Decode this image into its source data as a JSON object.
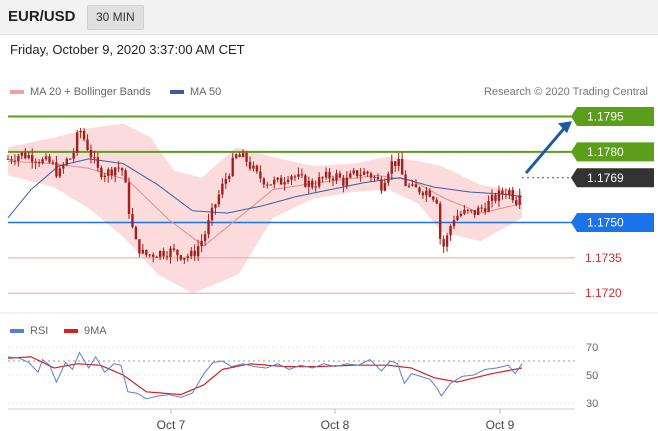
{
  "header": {
    "pair": "EUR/USD",
    "timeframe": "30 MIN"
  },
  "datetime": "Friday, October 9, 2020 3:37:00 AM CET",
  "legend": {
    "ma20": "MA 20 + Bollinger Bands",
    "ma50": "MA 50",
    "credit": "Research © 2020 Trading Central",
    "rsi": "RSI",
    "ma9": "9MA"
  },
  "colors": {
    "bollinger": "#f7b0b0",
    "ma20": "#e88a8a",
    "ma50": "#3a5f9e",
    "resistance": "#5a9e1a",
    "support": "#1a73e8",
    "target_line": "#f0a0a0",
    "candle": "#a02020",
    "arrow": "#1e5aa0",
    "rsi": "#5b7fd0",
    "rsi_ma": "#d42020"
  },
  "chart_data": [
    {
      "type": "candlestick",
      "ylim": [
        1.1715,
        1.1802
      ],
      "x_ticks": [
        "Oct 7",
        "Oct 8",
        "Oct 9"
      ],
      "levels": [
        {
          "value": 1.1795,
          "label": "1.1795",
          "kind": "resistance"
        },
        {
          "value": 1.178,
          "label": "1.1780",
          "kind": "resistance"
        },
        {
          "value": 1.1769,
          "label": "1.1769",
          "kind": "current"
        },
        {
          "value": 1.175,
          "label": "1.1750",
          "kind": "pivot"
        },
        {
          "value": 1.1735,
          "label": "1.1735",
          "kind": "target"
        },
        {
          "value": 1.172,
          "label": "1.1720",
          "kind": "target"
        }
      ],
      "close_anchors": [
        [
          0,
          1.1777
        ],
        [
          10,
          1.1779
        ],
        [
          22,
          1.1778
        ],
        [
          30,
          1.1776
        ],
        [
          38,
          1.1775
        ],
        [
          44,
          1.177
        ],
        [
          50,
          1.1776
        ],
        [
          56,
          1.1778
        ],
        [
          62,
          1.179
        ],
        [
          70,
          1.1781
        ],
        [
          78,
          1.1772
        ],
        [
          86,
          1.1771
        ],
        [
          94,
          1.1774
        ],
        [
          100,
          1.1772
        ],
        [
          104,
          1.1758
        ],
        [
          110,
          1.1742
        ],
        [
          118,
          1.1736
        ],
        [
          128,
          1.1737
        ],
        [
          140,
          1.1738
        ],
        [
          152,
          1.1736
        ],
        [
          160,
          1.1736
        ],
        [
          170,
          1.1744
        ],
        [
          180,
          1.1758
        ],
        [
          190,
          1.177
        ],
        [
          198,
          1.1778
        ],
        [
          206,
          1.1777
        ],
        [
          216,
          1.177
        ],
        [
          226,
          1.1767
        ],
        [
          236,
          1.1767
        ],
        [
          244,
          1.1771
        ],
        [
          254,
          1.1768
        ],
        [
          264,
          1.1766
        ],
        [
          274,
          1.1769
        ],
        [
          284,
          1.177
        ],
        [
          292,
          1.1767
        ],
        [
          302,
          1.1771
        ],
        [
          312,
          1.1771
        ],
        [
          318,
          1.1769
        ],
        [
          324,
          1.1766
        ],
        [
          332,
          1.1775
        ],
        [
          338,
          1.1776
        ],
        [
          344,
          1.1767
        ],
        [
          350,
          1.1764
        ],
        [
          358,
          1.1764
        ],
        [
          366,
          1.1763
        ],
        [
          372,
          1.176
        ],
        [
          376,
          1.1738
        ],
        [
          380,
          1.1742
        ],
        [
          386,
          1.1752
        ],
        [
          394,
          1.1754
        ],
        [
          404,
          1.1754
        ],
        [
          414,
          1.1757
        ],
        [
          424,
          1.1761
        ],
        [
          434,
          1.1764
        ],
        [
          442,
          1.1759
        ],
        [
          446,
          1.1769
        ]
      ],
      "series": [
        {
          "name": "MA 20 + Bollinger Bands",
          "kind": "ma",
          "anchors": [
            [
              0,
              1.1776
            ],
            [
              40,
              1.1775
            ],
            [
              70,
              1.1773
            ],
            [
              104,
              1.1768
            ],
            [
              140,
              1.1751
            ],
            [
              170,
              1.174
            ],
            [
              200,
              1.1752
            ],
            [
              230,
              1.1764
            ],
            [
              270,
              1.1767
            ],
            [
              320,
              1.177
            ],
            [
              350,
              1.1768
            ],
            [
              380,
              1.176
            ],
            [
              410,
              1.1754
            ],
            [
              446,
              1.1758
            ]
          ]
        },
        {
          "name": "Bollinger upper",
          "anchors": [
            [
              0,
              1.1782
            ],
            [
              40,
              1.1786
            ],
            [
              70,
              1.179
            ],
            [
              100,
              1.1792
            ],
            [
              124,
              1.1786
            ],
            [
              144,
              1.1772
            ],
            [
              168,
              1.1769
            ],
            [
              198,
              1.1782
            ],
            [
              228,
              1.1778
            ],
            [
              264,
              1.1774
            ],
            [
              300,
              1.1775
            ],
            [
              330,
              1.1778
            ],
            [
              356,
              1.1776
            ],
            [
              376,
              1.1774
            ],
            [
              410,
              1.1766
            ],
            [
              446,
              1.1763
            ]
          ]
        },
        {
          "name": "Bollinger lower",
          "anchors": [
            [
              0,
              1.177
            ],
            [
              40,
              1.1765
            ],
            [
              70,
              1.1756
            ],
            [
              100,
              1.1744
            ],
            [
              130,
              1.1728
            ],
            [
              160,
              1.172
            ],
            [
              176,
              1.1723
            ],
            [
              200,
              1.1728
            ],
            [
              230,
              1.1752
            ],
            [
              264,
              1.176
            ],
            [
              300,
              1.1763
            ],
            [
              330,
              1.1764
            ],
            [
              356,
              1.1758
            ],
            [
              376,
              1.1746
            ],
            [
              410,
              1.1742
            ],
            [
              446,
              1.1752
            ]
          ]
        },
        {
          "name": "MA 50",
          "anchors": [
            [
              0,
              1.1752
            ],
            [
              20,
              1.1764
            ],
            [
              44,
              1.1774
            ],
            [
              70,
              1.1777
            ],
            [
              100,
              1.1775
            ],
            [
              130,
              1.1766
            ],
            [
              160,
              1.1755
            ],
            [
              190,
              1.1754
            ],
            [
              220,
              1.1757
            ],
            [
              250,
              1.1761
            ],
            [
              280,
              1.1764
            ],
            [
              310,
              1.1767
            ],
            [
              340,
              1.1769
            ],
            [
              370,
              1.1765
            ],
            [
              400,
              1.1763
            ],
            [
              430,
              1.1762
            ],
            [
              446,
              1.1761
            ]
          ]
        }
      ]
    },
    {
      "type": "line",
      "name": "RSI",
      "ylim": [
        25,
        75
      ],
      "y_ticks": [
        30,
        50,
        70
      ],
      "reference": 60,
      "series": [
        {
          "name": "RSI",
          "anchors": [
            [
              0,
              63
            ],
            [
              10,
              62
            ],
            [
              18,
              59
            ],
            [
              26,
              52
            ],
            [
              30,
              61
            ],
            [
              36,
              57
            ],
            [
              42,
              45
            ],
            [
              50,
              59
            ],
            [
              56,
              54
            ],
            [
              62,
              66
            ],
            [
              70,
              55
            ],
            [
              76,
              63
            ],
            [
              84,
              52
            ],
            [
              92,
              58
            ],
            [
              98,
              57
            ],
            [
              104,
              38
            ],
            [
              112,
              37
            ],
            [
              120,
              33
            ],
            [
              130,
              35
            ],
            [
              140,
              36
            ],
            [
              150,
              34
            ],
            [
              160,
              37
            ],
            [
              170,
              51
            ],
            [
              178,
              59
            ],
            [
              186,
              60
            ],
            [
              194,
              56
            ],
            [
              204,
              58
            ],
            [
              214,
              56
            ],
            [
              224,
              55
            ],
            [
              234,
              58
            ],
            [
              244,
              54
            ],
            [
              254,
              57
            ],
            [
              264,
              55
            ],
            [
              274,
              58
            ],
            [
              284,
              56
            ],
            [
              294,
              58
            ],
            [
              304,
              57
            ],
            [
              314,
              61
            ],
            [
              324,
              53
            ],
            [
              332,
              60
            ],
            [
              338,
              58
            ],
            [
              344,
              44
            ],
            [
              350,
              51
            ],
            [
              358,
              49
            ],
            [
              366,
              47
            ],
            [
              372,
              41
            ],
            [
              376,
              35
            ],
            [
              384,
              44
            ],
            [
              394,
              49
            ],
            [
              404,
              50
            ],
            [
              414,
              54
            ],
            [
              424,
              55
            ],
            [
              434,
              57
            ],
            [
              440,
              51
            ],
            [
              446,
              58
            ]
          ]
        },
        {
          "name": "9MA",
          "anchors": [
            [
              0,
              62
            ],
            [
              20,
              63
            ],
            [
              40,
              55
            ],
            [
              60,
              58
            ],
            [
              80,
              57
            ],
            [
              100,
              50
            ],
            [
              120,
              38
            ],
            [
              150,
              36
            ],
            [
              170,
              43
            ],
            [
              186,
              54
            ],
            [
              210,
              58
            ],
            [
              240,
              56
            ],
            [
              270,
              56
            ],
            [
              300,
              57
            ],
            [
              330,
              57
            ],
            [
              350,
              55
            ],
            [
              370,
              48
            ],
            [
              390,
              45
            ],
            [
              420,
              51
            ],
            [
              446,
              55
            ]
          ]
        }
      ]
    }
  ]
}
